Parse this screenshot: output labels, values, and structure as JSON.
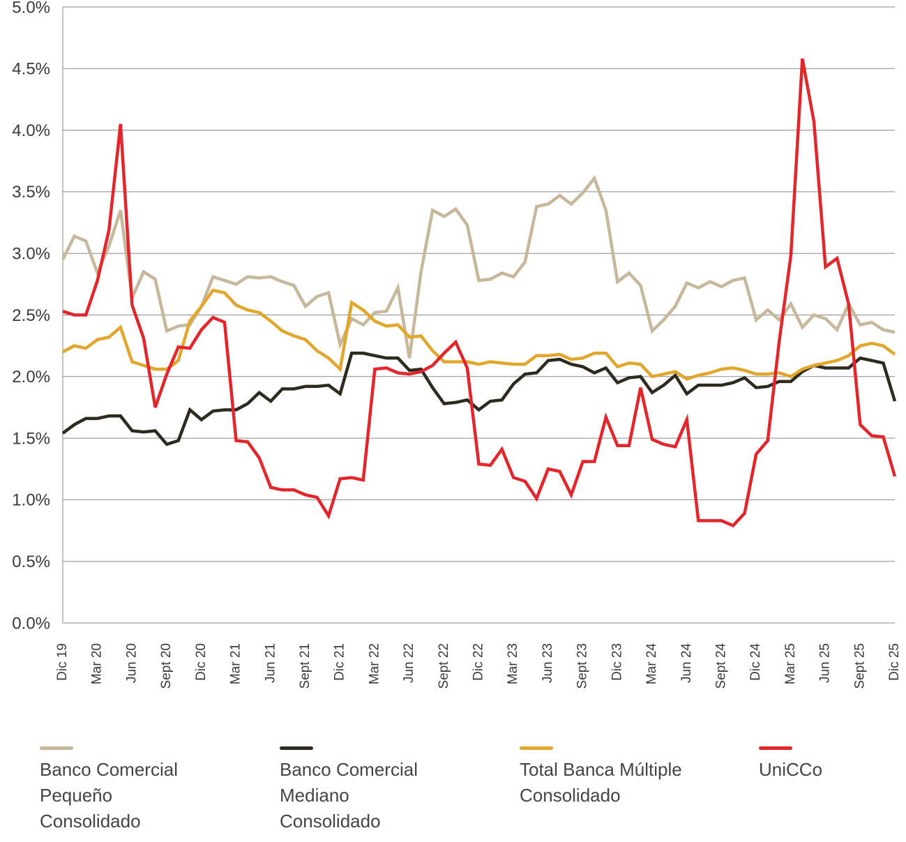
{
  "chart_data": {
    "type": "line",
    "categories": [
      "Dic 19",
      null,
      null,
      "Mar 20",
      null,
      null,
      "Jun 20",
      null,
      null,
      "Sept 20",
      null,
      null,
      "Dic 20",
      null,
      null,
      "Mar 21",
      null,
      null,
      "Jun 21",
      null,
      null,
      "Sept 21",
      null,
      null,
      "Dic 21",
      null,
      null,
      "Mar 22",
      null,
      null,
      "Jun 22",
      null,
      null,
      "Sept 22",
      null,
      null,
      "Dic 22",
      null,
      null,
      "Mar 23",
      null,
      null,
      "Jun 23",
      null,
      null,
      "Sept 23",
      null,
      null,
      "Dic 23",
      null,
      null,
      "Mar 24",
      null,
      null,
      "Jun 24",
      null,
      null,
      "Sept 24",
      null,
      null,
      "Dic 24",
      null,
      null,
      "Mar 25",
      null,
      null,
      "Jun 25",
      null,
      null,
      "Sept 25",
      null,
      null,
      "Dic 25"
    ],
    "series": [
      {
        "name": "Banco Comercial Pequeño Consolidado",
        "color": "#c8b89b",
        "values": [
          2.95,
          3.14,
          3.1,
          2.84,
          3.06,
          3.35,
          2.64,
          2.85,
          2.79,
          2.37,
          2.41,
          2.42,
          2.57,
          2.81,
          2.78,
          2.75,
          2.81,
          2.8,
          2.81,
          2.77,
          2.74,
          2.57,
          2.65,
          2.68,
          2.26,
          2.47,
          2.42,
          2.52,
          2.53,
          2.72,
          2.15,
          2.85,
          3.35,
          3.3,
          3.36,
          3.23,
          2.78,
          2.79,
          2.84,
          2.81,
          2.93,
          3.38,
          3.4,
          3.47,
          3.4,
          3.49,
          3.61,
          3.35,
          2.77,
          2.84,
          2.74,
          2.37,
          2.46,
          2.57,
          2.76,
          2.72,
          2.77,
          2.73,
          2.78,
          2.8,
          2.46,
          2.54,
          2.46,
          2.59,
          2.4,
          2.5,
          2.47,
          2.38,
          2.59,
          2.42,
          2.44,
          2.38,
          2.36
        ]
      },
      {
        "name": "Banco Comercial Mediano Consolidado",
        "color": "#2e2a20",
        "values": [
          1.54,
          1.61,
          1.66,
          1.66,
          1.68,
          1.68,
          1.56,
          1.55,
          1.56,
          1.45,
          1.48,
          1.73,
          1.65,
          1.72,
          1.73,
          1.73,
          1.78,
          1.87,
          1.8,
          1.9,
          1.9,
          1.92,
          1.92,
          1.93,
          1.86,
          2.19,
          2.19,
          2.17,
          2.15,
          2.15,
          2.05,
          2.06,
          1.91,
          1.78,
          1.79,
          1.81,
          1.73,
          1.8,
          1.81,
          1.94,
          2.02,
          2.03,
          2.13,
          2.14,
          2.1,
          2.08,
          2.03,
          2.07,
          1.95,
          1.99,
          2.0,
          1.87,
          1.93,
          2.01,
          1.86,
          1.93,
          1.93,
          1.93,
          1.95,
          1.99,
          1.91,
          1.92,
          1.96,
          1.96,
          2.04,
          2.09,
          2.07,
          2.07,
          2.07,
          2.15,
          2.13,
          2.11,
          1.8
        ]
      },
      {
        "name": "Total Banca Múltiple Consolidado",
        "color": "#e2a62c",
        "values": [
          2.2,
          2.25,
          2.23,
          2.3,
          2.32,
          2.4,
          2.12,
          2.09,
          2.06,
          2.06,
          2.13,
          2.45,
          2.57,
          2.7,
          2.68,
          2.58,
          2.54,
          2.52,
          2.45,
          2.37,
          2.33,
          2.3,
          2.21,
          2.15,
          2.06,
          2.6,
          2.54,
          2.45,
          2.41,
          2.42,
          2.32,
          2.33,
          2.21,
          2.12,
          2.12,
          2.12,
          2.1,
          2.12,
          2.11,
          2.1,
          2.1,
          2.17,
          2.17,
          2.18,
          2.14,
          2.15,
          2.19,
          2.19,
          2.08,
          2.11,
          2.1,
          2.0,
          2.02,
          2.04,
          1.98,
          2.01,
          2.03,
          2.06,
          2.07,
          2.05,
          2.02,
          2.02,
          2.03,
          2.0,
          2.06,
          2.09,
          2.11,
          2.13,
          2.17,
          2.25,
          2.27,
          2.25,
          2.18
        ]
      },
      {
        "name": "UniCCo",
        "color": "#e3262b",
        "values": [
          2.53,
          2.5,
          2.5,
          2.78,
          3.19,
          4.05,
          2.58,
          2.31,
          1.75,
          2.02,
          2.24,
          2.23,
          2.38,
          2.48,
          2.44,
          1.48,
          1.47,
          1.34,
          1.1,
          1.08,
          1.08,
          1.04,
          1.02,
          0.87,
          1.17,
          1.18,
          1.16,
          2.06,
          2.07,
          2.03,
          2.02,
          2.04,
          2.09,
          2.19,
          2.28,
          2.07,
          1.29,
          1.28,
          1.41,
          1.18,
          1.15,
          1.01,
          1.25,
          1.23,
          1.04,
          1.31,
          1.31,
          1.67,
          1.44,
          1.44,
          1.91,
          1.49,
          1.45,
          1.43,
          1.65,
          0.83,
          0.83,
          0.83,
          0.79,
          0.89,
          1.37,
          1.48,
          2.29,
          2.98,
          4.58,
          4.07,
          2.89,
          2.96,
          2.59,
          1.61,
          1.52,
          1.51,
          1.19
        ]
      }
    ],
    "ylim": [
      0,
      5
    ],
    "yticks": [
      {
        "value": 0,
        "label": "0.0%"
      },
      {
        "value": 0.5,
        "label": "0.5%"
      },
      {
        "value": 1,
        "label": "1.0%"
      },
      {
        "value": 1.5,
        "label": "1.5%"
      },
      {
        "value": 2,
        "label": "2.0%"
      },
      {
        "value": 2.5,
        "label": "2.5%"
      },
      {
        "value": 3,
        "label": "3.0%"
      },
      {
        "value": 3.5,
        "label": "3.5%"
      },
      {
        "value": 4,
        "label": "4.0%"
      },
      {
        "value": 4.5,
        "label": "4.5%"
      },
      {
        "value": 5,
        "label": "5.0%"
      }
    ],
    "grid": true,
    "legend": "bottom"
  }
}
